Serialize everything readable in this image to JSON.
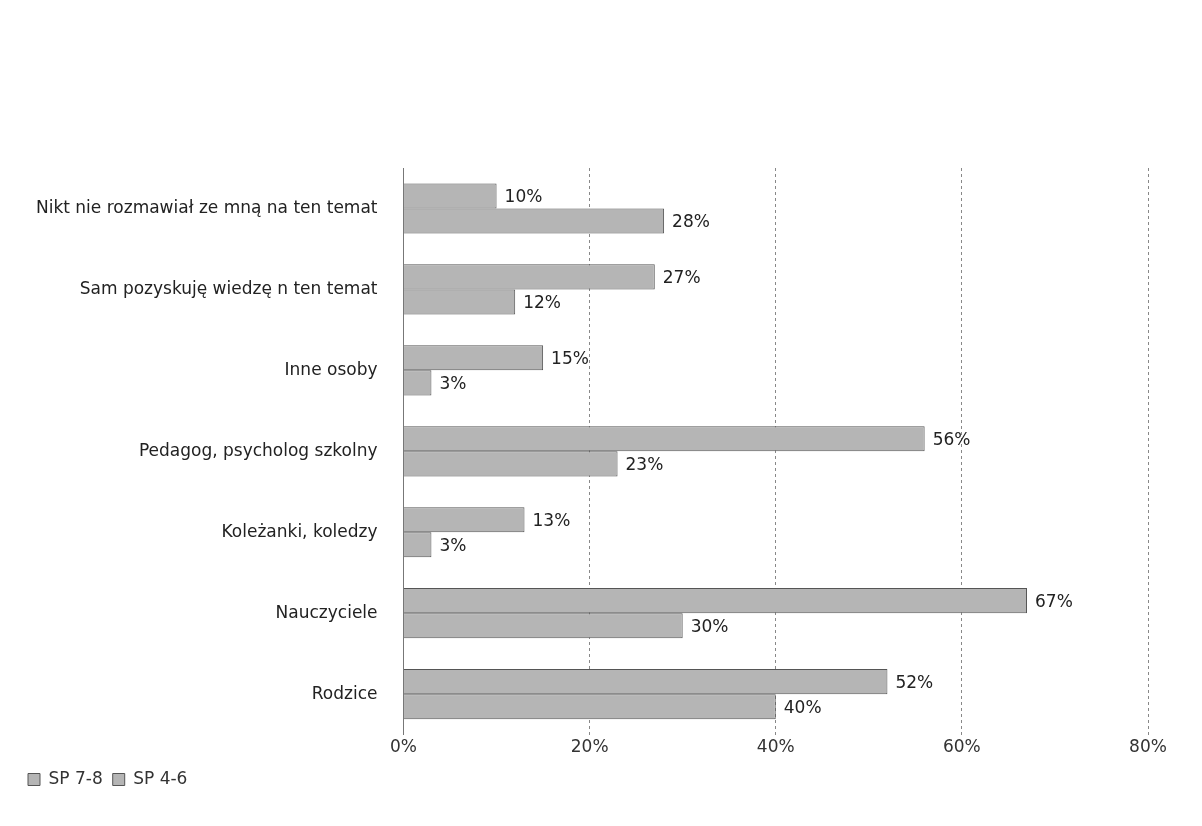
{
  "chart_data": {
    "type": "bar",
    "orientation": "horizontal",
    "categories": [
      "Nikt nie rozmawiał ze mną na ten temat",
      "Sam pozyskuję wiedzę n ten temat",
      "Inne osoby",
      "Pedagog, psycholog szkolny",
      "Koleżanki, koledzy",
      "Nauczyciele",
      "Rodzice"
    ],
    "series": [
      {
        "name": "SP 7-8",
        "color": "#b5b5b5",
        "values": [
          28,
          12,
          3,
          23,
          3,
          30,
          40
        ],
        "value_labels": [
          "28%",
          "12%",
          "3%",
          "23%",
          "3%",
          "30%",
          "40%"
        ]
      },
      {
        "name": "SP 4-6",
        "color": "#b5b5b5",
        "values": [
          10,
          27,
          15,
          56,
          13,
          67,
          52
        ],
        "value_labels": [
          "10%",
          "27%",
          "15%",
          "56%",
          "13%",
          "67%",
          "52%"
        ]
      }
    ],
    "xlim": [
      0,
      80
    ],
    "xticks": [
      {
        "value": 0,
        "label": "0%"
      },
      {
        "value": 20,
        "label": "20%"
      },
      {
        "value": 40,
        "label": "40%"
      },
      {
        "value": 60,
        "label": "60%"
      },
      {
        "value": 80,
        "label": "80%"
      }
    ],
    "grid": "x",
    "legend": "bottom left"
  }
}
